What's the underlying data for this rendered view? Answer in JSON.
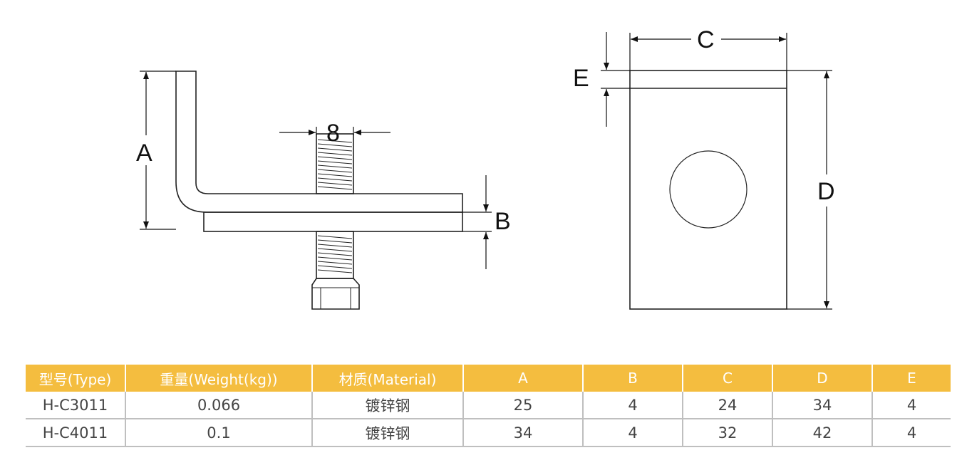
{
  "diagram": {
    "labels": {
      "A": "A",
      "B": "B",
      "C": "C",
      "D": "D",
      "E": "E",
      "bolt": "8"
    }
  },
  "table": {
    "headers": [
      "型号(Type)",
      "重量(Weight(kg))",
      "材质(Material)",
      "A",
      "B",
      "C",
      "D",
      "E"
    ],
    "rows": [
      [
        "H-C3011",
        "0.066",
        "镀锌钢",
        "25",
        "4",
        "24",
        "34",
        "4"
      ],
      [
        "H-C4011",
        "0.1",
        "镀锌钢",
        "34",
        "4",
        "32",
        "42",
        "4"
      ]
    ],
    "header_color": "#f4bd3f"
  }
}
